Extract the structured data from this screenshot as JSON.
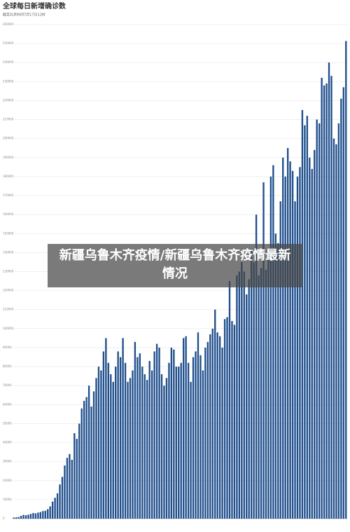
{
  "chart_data": {
    "type": "bar",
    "title": "全球每日新增确诊数",
    "subtitle": "截至北京时间7月17日12时",
    "values": [
      600,
      700,
      900,
      1500,
      2000,
      1800,
      2100,
      2500,
      3000,
      2800,
      3200,
      3500,
      4000,
      4200,
      5000,
      6500,
      9000,
      11000,
      13348,
      18000,
      22000,
      28000,
      32000,
      34000,
      31000,
      45000,
      42000,
      50000,
      58000,
      62000,
      64000,
      70000,
      59000,
      67000,
      74000,
      80000,
      78000,
      88000,
      95000,
      82000,
      76000,
      72000,
      80000,
      88000,
      85000,
      95000,
      82000,
      72000,
      74000,
      78000,
      93000,
      85000,
      87000,
      80000,
      76000,
      73000,
      83000,
      78000,
      88000,
      92000,
      90000,
      76000,
      70000,
      74000,
      82000,
      90000,
      89000,
      80000,
      80000,
      82000,
      95000,
      96000,
      82000,
      72000,
      85000,
      88000,
      98000,
      86000,
      78000,
      90000,
      93000,
      97000,
      100000,
      110000,
      98000,
      96000,
      90000,
      105000,
      106000,
      125000,
      104000,
      102000,
      128000,
      130000,
      135000,
      130000,
      118000,
      126000,
      142000,
      135000,
      160000,
      128000,
      132000,
      177000,
      131000,
      142000,
      180000,
      186000,
      150000,
      145000,
      167000,
      190000,
      180000,
      195000,
      188000,
      183000,
      167000,
      180000,
      185000,
      215000,
      207000,
      212000,
      190000,
      184000,
      194000,
      210000,
      208000,
      232000,
      228000,
      229000,
      240000,
      233000,
      200000,
      197000,
      208000,
      221000,
      227000,
      251339
    ],
    "color": "#1f4e8c",
    "ylim": [
      0,
      260000
    ],
    "yticks": [
      0,
      10000,
      20000,
      30000,
      40000,
      50000,
      60000,
      70000,
      80000,
      90000,
      100000,
      110000,
      120000,
      130000,
      140000,
      150000,
      160000,
      170000,
      180000,
      190000,
      200000,
      210000,
      220000,
      230000,
      240000,
      250000,
      260000
    ],
    "grid": true
  },
  "overlay": {
    "text": "新疆乌鲁木齐疫情/新疆乌鲁木齐疫情最新情况"
  }
}
